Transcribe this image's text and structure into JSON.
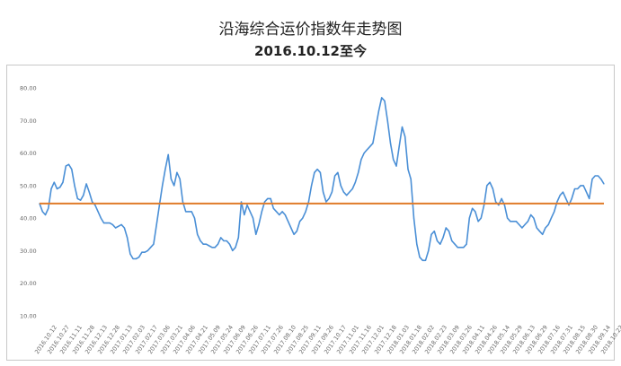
{
  "title": "沿海综合运价指数年走势图",
  "subtitle": "2016.10.12至今",
  "chart_data": {
    "type": "line",
    "title": "沿海综合运价指数年走势图",
    "subtitle": "2016.10.12至今",
    "ylim": [
      10,
      80
    ],
    "y_ticks": [
      "10.00",
      "20.00",
      "30.00",
      "40.00",
      "50.00",
      "60.00",
      "70.00",
      "80.00"
    ],
    "x_tick_labels": [
      "2016.10.12",
      "2016.10.27",
      "2016.11.11",
      "2016.11.28",
      "2016.12.13",
      "2016.12.28",
      "2017.01.13",
      "2017.02.03",
      "2017.02.17",
      "2017.03.06",
      "2017.03.21",
      "2017.04.06",
      "2017.04.21",
      "2017.05.09",
      "2017.05.24",
      "2017.06.09",
      "2017.06.26",
      "2017.07.11",
      "2017.07.26",
      "2017.08.10",
      "2017.08.25",
      "2017.09.11",
      "2017.09.26",
      "2017.10.17",
      "2017.11.01",
      "2017.11.16",
      "2017.12.01",
      "2017.12.18",
      "2018.01.03",
      "2018.01.18",
      "2018.02.02",
      "2018.02.23",
      "2018.03.09",
      "2018.03.26",
      "2018.04.11",
      "2018.04.26",
      "2018.05.14",
      "2018.05.29",
      "2018.06.13",
      "2018.06.29",
      "2018.07.16",
      "2018.07.31",
      "2018.08.15",
      "2018.08.30",
      "2018.09.14",
      "2018.10.22"
    ],
    "reference_line": {
      "value": 44.5,
      "color": "#e07b2a"
    },
    "series": [
      {
        "color": "#4a8fd6",
        "values": [
          44.5,
          42,
          41,
          43,
          49,
          51,
          49,
          49.5,
          51,
          56,
          56.5,
          55,
          50,
          46,
          45.5,
          47,
          50.5,
          48,
          45,
          44,
          42,
          40,
          38.5,
          38.5,
          38.5,
          38,
          37,
          37.5,
          38,
          37,
          34,
          29,
          27.5,
          27.5,
          28,
          29.5,
          29.5,
          30,
          31,
          32,
          38,
          44,
          50,
          55,
          59.5,
          52,
          50,
          54,
          52,
          45,
          42,
          42,
          42,
          40,
          35,
          33,
          32,
          32,
          31.5,
          31,
          31,
          32,
          34,
          33,
          33,
          32,
          30,
          31,
          34,
          45,
          41,
          44,
          42,
          40,
          35,
          38,
          42,
          45,
          46,
          46,
          43,
          42,
          41,
          42,
          41,
          39,
          37,
          35,
          36,
          39,
          40,
          42,
          45,
          50,
          54,
          55,
          54,
          48,
          45,
          46,
          48,
          53,
          54,
          50,
          48,
          47,
          48,
          49,
          51,
          54,
          58,
          60,
          61,
          62,
          63,
          68,
          73,
          77,
          76,
          70,
          63,
          58,
          56,
          62,
          68,
          65,
          55,
          52,
          40,
          32,
          28,
          27,
          27,
          30,
          35,
          36,
          33,
          32,
          34,
          37,
          36,
          33,
          32,
          31,
          31,
          31,
          32,
          40,
          43,
          42,
          39,
          40,
          44,
          50,
          51,
          49,
          45,
          44,
          46,
          44,
          40,
          39,
          39,
          39,
          38,
          37,
          38,
          39,
          41,
          40,
          37,
          36,
          35,
          37,
          38,
          40,
          42,
          45,
          47,
          48,
          46,
          44,
          46,
          49,
          49,
          50,
          50,
          48,
          46,
          52,
          53,
          53,
          52,
          50.5
        ]
      }
    ],
    "grid": false
  }
}
